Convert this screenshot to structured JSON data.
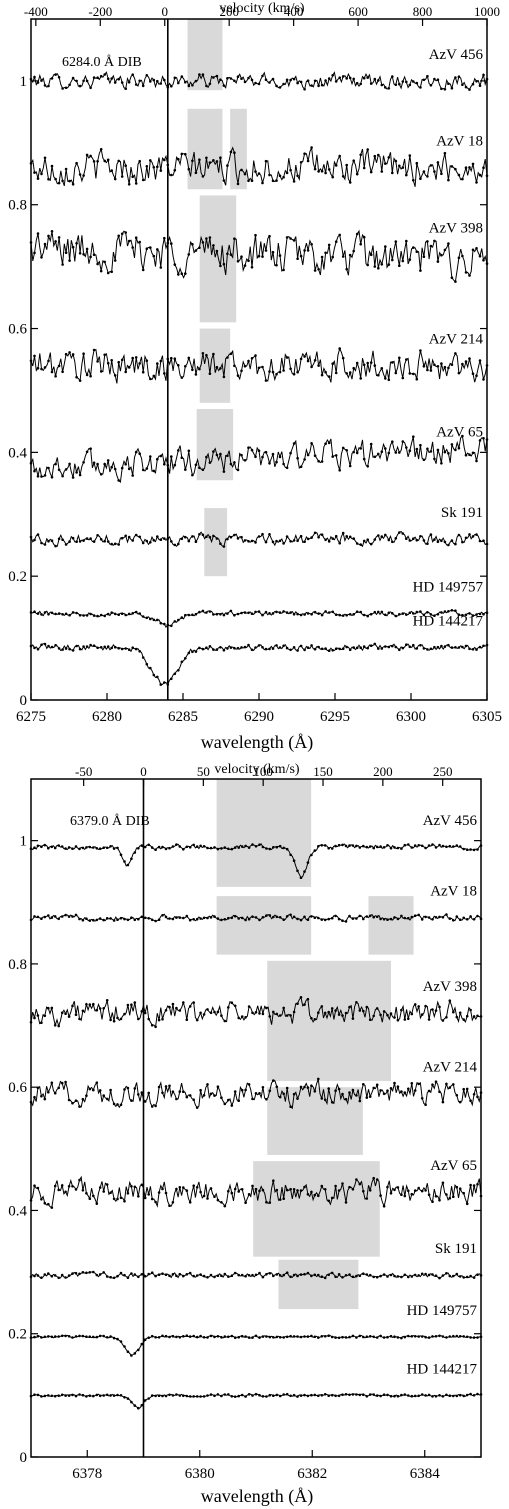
{
  "charts": [
    {
      "type": "line",
      "dib_label": "6284.0 Å DIB",
      "xlabel": "wavelength (Å)",
      "x2label": "velocity (km/s)",
      "xlim": [
        6275,
        6305
      ],
      "ylim": [
        0,
        1.1
      ],
      "x2lim": [
        -415,
        1000
      ],
      "x_ticks": [
        "6275",
        "6280",
        "6285",
        "6290",
        "6295",
        "6300",
        "6305"
      ],
      "x_tick_values": [
        6275,
        6280,
        6285,
        6290,
        6295,
        6300,
        6305
      ],
      "y_ticks": [
        "0",
        "0.2",
        "0.4",
        "0.6",
        "0.8",
        "1"
      ],
      "y_tick_values": [
        0,
        0.2,
        0.4,
        0.6,
        0.8,
        1.0
      ],
      "x2_ticks": [
        "-400",
        "-200",
        "0",
        "200",
        "400",
        "600",
        "800",
        "1000"
      ],
      "x2_tick_values": [
        -400,
        -200,
        0,
        200,
        400,
        600,
        800,
        1000
      ],
      "rest_line_x": 6284.0,
      "series": [
        {
          "name": "AzV 456",
          "level": 1.0,
          "noise": 0.018,
          "absorptions": []
        },
        {
          "name": "AzV 18",
          "level": 0.86,
          "noise": 0.04,
          "absorptions": []
        },
        {
          "name": "AzV 398",
          "level": 0.72,
          "slope": -0.02,
          "noise": 0.05,
          "absorptions": []
        },
        {
          "name": "AzV 214",
          "level": 0.54,
          "noise": 0.04,
          "absorptions": []
        },
        {
          "name": "AzV 65",
          "level": 0.39,
          "slope": 0.03,
          "noise": 0.035,
          "absorptions": []
        },
        {
          "name": "Sk 191",
          "level": 0.26,
          "noise": 0.014,
          "absorptions": []
        },
        {
          "name": "HD 149757",
          "level": 0.14,
          "noise": 0.006,
          "absorptions": [
            {
              "center": 6284.0,
              "depth": 0.02,
              "width": 1.0
            }
          ]
        },
        {
          "name": "HD 144217",
          "level": 0.085,
          "noise": 0.008,
          "absorptions": [
            {
              "center": 6283.8,
              "depth": 0.06,
              "width": 1.2
            }
          ]
        }
      ],
      "shaded_regions": [
        {
          "x": [
            6285.3,
            6287.6
          ],
          "y": [
            0.985,
            1.1
          ]
        },
        {
          "x": [
            6285.3,
            6287.6
          ],
          "y": [
            0.825,
            0.955
          ]
        },
        {
          "x": [
            6288.1,
            6289.2
          ],
          "y": [
            0.825,
            0.955
          ]
        },
        {
          "x": [
            6286.1,
            6288.5
          ],
          "y": [
            0.61,
            0.815
          ]
        },
        {
          "x": [
            6286.1,
            6288.1
          ],
          "y": [
            0.48,
            0.6
          ]
        },
        {
          "x": [
            6285.9,
            6288.3
          ],
          "y": [
            0.355,
            0.47
          ]
        },
        {
          "x": [
            6286.4,
            6287.9
          ],
          "y": [
            0.2,
            0.31
          ]
        }
      ]
    },
    {
      "type": "line",
      "dib_label": "6379.0 Å DIB",
      "xlabel": "wavelength (Å)",
      "x2label": "velocity (km/s)",
      "xlim": [
        6377.0,
        6385.0
      ],
      "ylim": [
        0,
        1.1
      ],
      "x2lim": [
        -94,
        282
      ],
      "x_ticks": [
        "6378",
        "6380",
        "6382",
        "6384"
      ],
      "x_tick_values": [
        6378,
        6380,
        6382,
        6384
      ],
      "y_ticks": [
        "0",
        "0.2",
        "0.4",
        "0.6",
        "0.8",
        "1"
      ],
      "y_tick_values": [
        0,
        0.2,
        0.4,
        0.6,
        0.8,
        1.0
      ],
      "x2_ticks": [
        "-50",
        "0",
        "50",
        "100",
        "150",
        "200",
        "250"
      ],
      "x2_tick_values": [
        -50,
        0,
        50,
        100,
        150,
        200,
        250
      ],
      "rest_line_x": 6379.0,
      "series": [
        {
          "name": "AzV 456",
          "level": 0.99,
          "noise": 0.006,
          "absorptions": [
            {
              "center": 6378.7,
              "depth": 0.03,
              "width": 0.12
            },
            {
              "center": 6381.8,
              "depth": 0.05,
              "width": 0.15
            }
          ]
        },
        {
          "name": "AzV 18",
          "level": 0.875,
          "noise": 0.007,
          "absorptions": []
        },
        {
          "name": "AzV 398",
          "level": 0.72,
          "noise": 0.03,
          "absorptions": []
        },
        {
          "name": "AzV 214",
          "level": 0.59,
          "noise": 0.03,
          "absorptions": []
        },
        {
          "name": "AzV 65",
          "level": 0.43,
          "noise": 0.03,
          "absorptions": []
        },
        {
          "name": "Sk 191",
          "level": 0.295,
          "noise": 0.006,
          "absorptions": []
        },
        {
          "name": "HD 149757",
          "level": 0.195,
          "noise": 0.003,
          "absorptions": [
            {
              "center": 6378.8,
              "depth": 0.03,
              "width": 0.18
            }
          ]
        },
        {
          "name": "HD 144217",
          "level": 0.1,
          "noise": 0.003,
          "absorptions": [
            {
              "center": 6378.9,
              "depth": 0.02,
              "width": 0.15
            }
          ]
        }
      ],
      "shaded_regions": [
        {
          "x": [
            6380.3,
            6381.98
          ],
          "y": [
            0.925,
            1.1
          ]
        },
        {
          "x": [
            6380.3,
            6381.98
          ],
          "y": [
            0.815,
            0.91
          ]
        },
        {
          "x": [
            6383.0,
            6383.8
          ],
          "y": [
            0.815,
            0.91
          ]
        },
        {
          "x": [
            6381.2,
            6383.4
          ],
          "y": [
            0.61,
            0.805
          ]
        },
        {
          "x": [
            6381.2,
            6382.9
          ],
          "y": [
            0.49,
            0.6
          ]
        },
        {
          "x": [
            6380.95,
            6383.2
          ],
          "y": [
            0.325,
            0.48
          ]
        },
        {
          "x": [
            6381.4,
            6382.82
          ],
          "y": [
            0.24,
            0.32
          ]
        }
      ]
    }
  ]
}
